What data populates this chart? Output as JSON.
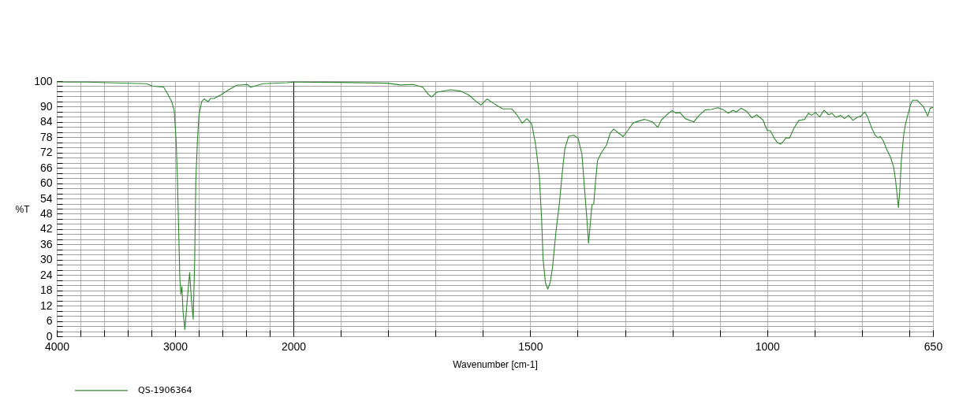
{
  "chart_data": [
    {
      "type": "line",
      "ylabel": "%T",
      "x": [
        4000,
        3900,
        3737,
        3512,
        3243,
        3187,
        3097,
        3063,
        3029,
        3007,
        2991,
        2980,
        2969,
        2960,
        2951,
        2942,
        2933,
        2917,
        2901,
        2877,
        2863,
        2847,
        2834,
        2825,
        2811,
        2798,
        2775,
        2753,
        2721,
        2699,
        2670,
        2614,
        2546,
        2479,
        2389,
        2362,
        2333,
        2254,
        2052,
        2000
      ],
      "series": [
        {
          "name": "QS-1906364",
          "color": "#2f8a2f",
          "values": [
            99.7,
            99.6,
            99.6,
            99.3,
            99.0,
            98.0,
            97.7,
            95.0,
            92.0,
            88.4,
            76.6,
            61.0,
            40.6,
            23.0,
            16.4,
            19.5,
            9.8,
            2.6,
            12.0,
            25.0,
            15.0,
            6.7,
            30.0,
            61.0,
            76.6,
            86.8,
            92.0,
            93.0,
            92.0,
            93.2,
            93.2,
            94.6,
            96.6,
            98.4,
            98.7,
            97.6,
            98.0,
            99.0,
            99.4,
            99.6
          ]
        }
      ],
      "xlim": [
        4000,
        2000
      ],
      "ylim": [
        0,
        100
      ],
      "xticks": [
        4000,
        {
          "value": 3800,
          "label": null
        },
        {
          "value": 3600,
          "label": null
        },
        {
          "value": 3400,
          "label": null
        },
        {
          "value": 3200,
          "label": null
        },
        3000,
        {
          "value": 2800,
          "label": null
        },
        {
          "value": 2600,
          "label": null
        },
        {
          "value": 2400,
          "label": null
        },
        {
          "value": 2200,
          "label": null
        },
        2000
      ],
      "yticks": [
        0,
        {
          "value": 2,
          "label": null
        },
        {
          "value": 4,
          "label": null
        },
        6,
        {
          "value": 8,
          "label": null
        },
        {
          "value": 10,
          "label": null
        },
        12,
        {
          "value": 14,
          "label": null
        },
        {
          "value": 16,
          "label": null
        },
        18,
        {
          "value": 20,
          "label": null
        },
        {
          "value": 22,
          "label": null
        },
        24,
        {
          "value": 26,
          "label": null
        },
        {
          "value": 28,
          "label": null
        },
        30,
        {
          "value": 32,
          "label": null
        },
        {
          "value": 34,
          "label": null
        },
        36,
        {
          "value": 38,
          "label": null
        },
        {
          "value": 40,
          "label": null
        },
        42,
        {
          "value": 44,
          "label": null
        },
        {
          "value": 46,
          "label": null
        },
        48,
        {
          "value": 50,
          "label": null
        },
        {
          "value": 52,
          "label": null
        },
        54,
        {
          "value": 56,
          "label": null
        },
        {
          "value": 58,
          "label": null
        },
        60,
        {
          "value": 62,
          "label": null
        },
        {
          "value": 64,
          "label": null
        },
        66,
        {
          "value": 68,
          "label": null
        },
        {
          "value": 70,
          "label": null
        },
        72,
        {
          "value": 74,
          "label": null
        },
        {
          "value": 76,
          "label": null
        },
        78,
        {
          "value": 80,
          "label": null
        },
        {
          "value": 82,
          "label": null
        },
        84,
        {
          "value": 86,
          "label": null
        },
        {
          "value": 88,
          "label": null
        },
        90,
        {
          "value": 92,
          "label": null
        },
        {
          "value": 94,
          "label": null
        },
        {
          "value": 96,
          "label": null
        },
        {
          "value": 98,
          "label": null
        },
        100
      ],
      "grid": true,
      "legend": "bottom left"
    },
    {
      "type": "line",
      "xlabel": "Wavenumber [cm-1]",
      "x": [
        2000,
        1902,
        1802,
        1774,
        1747,
        1727,
        1716,
        1708,
        1698,
        1669,
        1647,
        1630,
        1614,
        1604,
        1591,
        1575,
        1558,
        1539,
        1528,
        1517,
        1507,
        1497,
        1489,
        1481,
        1476,
        1473,
        1468,
        1463,
        1458,
        1453,
        1446,
        1438,
        1433,
        1427,
        1419,
        1408,
        1399,
        1391,
        1386,
        1380,
        1377,
        1373,
        1370,
        1366,
        1362,
        1358,
        1350,
        1339,
        1331,
        1324,
        1314,
        1304,
        1294,
        1283,
        1272,
        1259,
        1242,
        1231,
        1223,
        1212,
        1201,
        1192,
        1184,
        1173,
        1155,
        1145,
        1131,
        1118,
        1104,
        1092,
        1082,
        1072,
        1065,
        1055,
        1043,
        1032,
        1022,
        1009,
        1000,
        993,
        985,
        979,
        972,
        965,
        960,
        953,
        943,
        933,
        921,
        913,
        906,
        898,
        889,
        880,
        870,
        863,
        855,
        845,
        837,
        828,
        819,
        810,
        802,
        794,
        788,
        780,
        772,
        766,
        761,
        755,
        747,
        739,
        733,
        729,
        726,
        723,
        720,
        717,
        712,
        708,
        703,
        697,
        693,
        683,
        678,
        670,
        665,
        661,
        656,
        650
      ],
      "series": [
        {
          "color": "#2f8a2f",
          "values": [
            99.6,
            99.5,
            99.2,
            98.5,
            98.7,
            97.6,
            95.0,
            93.8,
            95.6,
            96.6,
            96.1,
            94.6,
            92.0,
            90.6,
            93.0,
            91.0,
            89.1,
            89.1,
            86.8,
            83.5,
            85.3,
            83.2,
            75.5,
            63.2,
            45.7,
            30.3,
            21.0,
            18.5,
            21.0,
            27.0,
            40.6,
            52.9,
            63.2,
            73.5,
            78.4,
            78.8,
            77.6,
            71.4,
            59.1,
            44.7,
            36.5,
            44.7,
            51.4,
            51.9,
            61.2,
            68.9,
            71.9,
            75.0,
            79.7,
            81.2,
            79.7,
            78.3,
            80.7,
            83.6,
            84.3,
            85.0,
            84.0,
            81.9,
            84.8,
            86.8,
            88.4,
            87.4,
            87.7,
            85.3,
            84.0,
            86.3,
            88.7,
            88.9,
            89.6,
            88.7,
            87.4,
            88.6,
            87.9,
            89.4,
            88.1,
            85.6,
            86.8,
            84.8,
            80.7,
            80.5,
            77.6,
            76.1,
            75.3,
            76.6,
            77.8,
            77.6,
            81.7,
            84.6,
            85.0,
            87.4,
            86.6,
            87.7,
            86.0,
            88.6,
            86.8,
            87.4,
            85.8,
            86.6,
            85.3,
            86.6,
            84.6,
            85.8,
            86.3,
            87.9,
            86.0,
            81.9,
            78.8,
            77.8,
            78.3,
            76.6,
            73.0,
            69.9,
            66.3,
            61.2,
            56.0,
            50.4,
            57.0,
            68.3,
            78.6,
            83.2,
            86.8,
            91.0,
            92.5,
            92.5,
            91.5,
            89.9,
            87.9,
            86.3,
            89.4,
            89.7
          ]
        }
      ],
      "xlim": [
        2000,
        650
      ],
      "ylim": [
        0,
        100
      ],
      "xticks": [
        {
          "value": 1900,
          "label": null
        },
        {
          "value": 1800,
          "label": null
        },
        {
          "value": 1700,
          "label": null
        },
        {
          "value": 1600,
          "label": null
        },
        1500,
        {
          "value": 1400,
          "label": null
        },
        {
          "value": 1300,
          "label": null
        },
        {
          "value": 1200,
          "label": null
        },
        {
          "value": 1100,
          "label": null
        },
        1000,
        {
          "value": 900,
          "label": null
        },
        {
          "value": 800,
          "label": null
        },
        {
          "value": 700,
          "label": null
        },
        650
      ],
      "yticks": [
        0,
        {
          "value": 2,
          "label": null
        },
        {
          "value": 4,
          "label": null
        },
        6,
        {
          "value": 8,
          "label": null
        },
        {
          "value": 10,
          "label": null
        },
        12,
        {
          "value": 14,
          "label": null
        },
        {
          "value": 16,
          "label": null
        },
        18,
        {
          "value": 20,
          "label": null
        },
        {
          "value": 22,
          "label": null
        },
        24,
        {
          "value": 26,
          "label": null
        },
        {
          "value": 28,
          "label": null
        },
        30,
        {
          "value": 32,
          "label": null
        },
        {
          "value": 34,
          "label": null
        },
        36,
        {
          "value": 38,
          "label": null
        },
        {
          "value": 40,
          "label": null
        },
        42,
        {
          "value": 44,
          "label": null
        },
        {
          "value": 46,
          "label": null
        },
        48,
        {
          "value": 50,
          "label": null
        },
        {
          "value": 52,
          "label": null
        },
        54,
        {
          "value": 56,
          "label": null
        },
        {
          "value": 58,
          "label": null
        },
        60,
        {
          "value": 62,
          "label": null
        },
        {
          "value": 64,
          "label": null
        },
        66,
        {
          "value": 68,
          "label": null
        },
        {
          "value": 70,
          "label": null
        },
        72,
        {
          "value": 74,
          "label": null
        },
        {
          "value": 76,
          "label": null
        },
        78,
        {
          "value": 80,
          "label": null
        },
        {
          "value": 82,
          "label": null
        },
        84,
        {
          "value": 86,
          "label": null
        },
        {
          "value": 88,
          "label": null
        },
        90,
        {
          "value": 92,
          "label": null
        },
        {
          "value": 94,
          "label": null
        },
        {
          "value": 96,
          "label": null
        },
        {
          "value": 98,
          "label": null
        },
        100
      ],
      "grid": true,
      "tick_labels": "x"
    }
  ]
}
